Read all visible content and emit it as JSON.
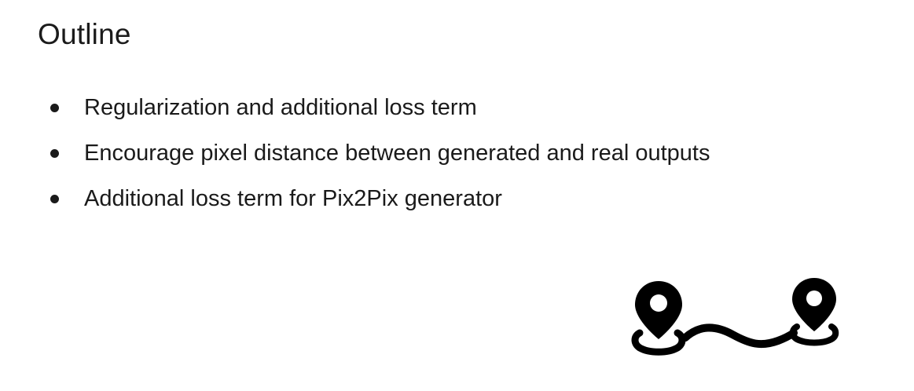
{
  "slide": {
    "title": "Outline",
    "bullets": [
      {
        "text": "Regularization and additional loss term"
      },
      {
        "text": "Encourage pixel distance between generated and real outputs"
      },
      {
        "text": "Additional loss term for Pix2Pix generator"
      }
    ],
    "graphic": {
      "icon": "map-route-icon",
      "color": "#000000"
    }
  }
}
